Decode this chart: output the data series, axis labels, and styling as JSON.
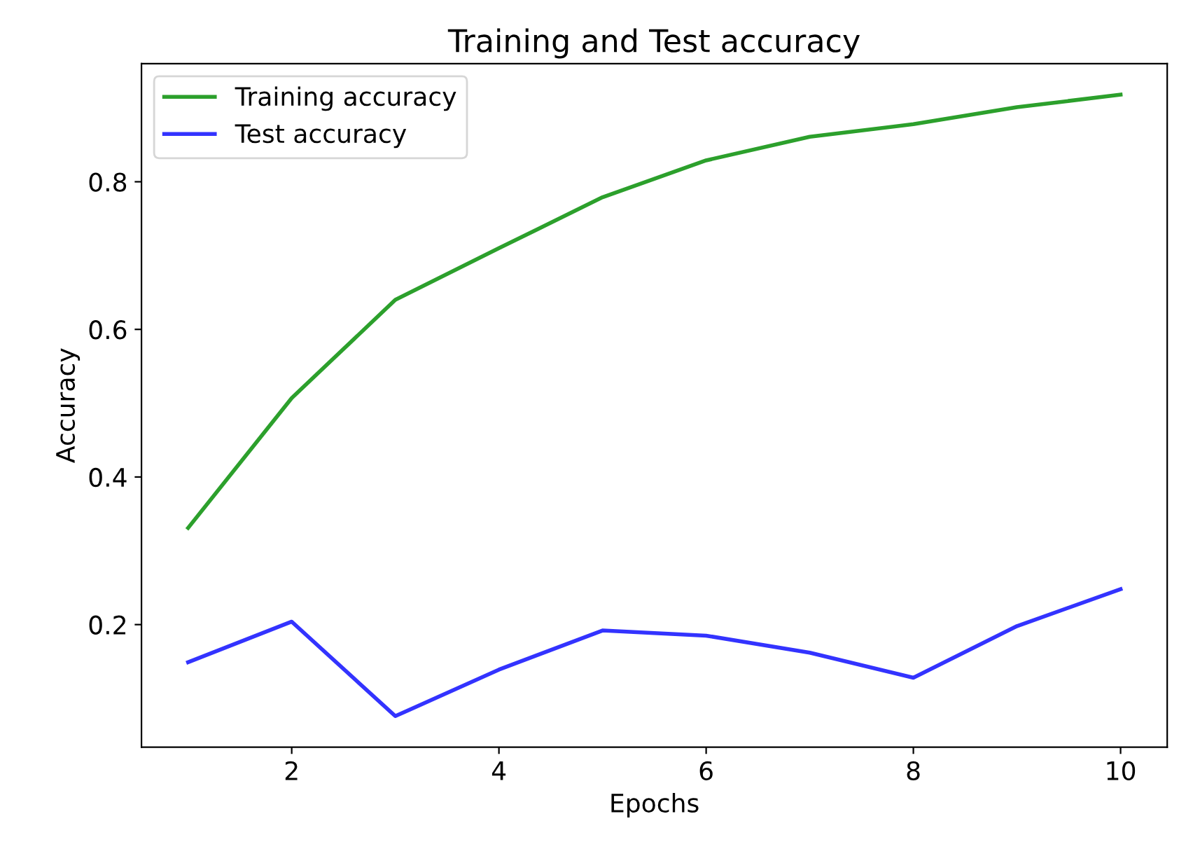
{
  "chart_data": {
    "type": "line",
    "title": "Training and Test accuracy",
    "xlabel": "Epochs",
    "ylabel": "Accuracy",
    "x": [
      1,
      2,
      3,
      4,
      5,
      6,
      7,
      8,
      9,
      10
    ],
    "series": [
      {
        "name": "Training accuracy",
        "color": "#2ca02c",
        "values": [
          0.331,
          0.507,
          0.64,
          0.71,
          0.779,
          0.829,
          0.861,
          0.878,
          0.901,
          0.918
        ]
      },
      {
        "name": "Test accuracy",
        "color": "#3333ff",
        "values": [
          0.149,
          0.204,
          0.076,
          0.139,
          0.192,
          0.185,
          0.162,
          0.128,
          0.198,
          0.248
        ]
      }
    ],
    "xlim": [
      0.55,
      10.45
    ],
    "ylim": [
      0.034,
      0.96
    ],
    "xticks": [
      2,
      4,
      6,
      8,
      10
    ],
    "yticks": [
      0.2,
      0.4,
      0.6,
      0.8
    ],
    "grid": false,
    "legend": "top left",
    "line_style": "solid"
  }
}
